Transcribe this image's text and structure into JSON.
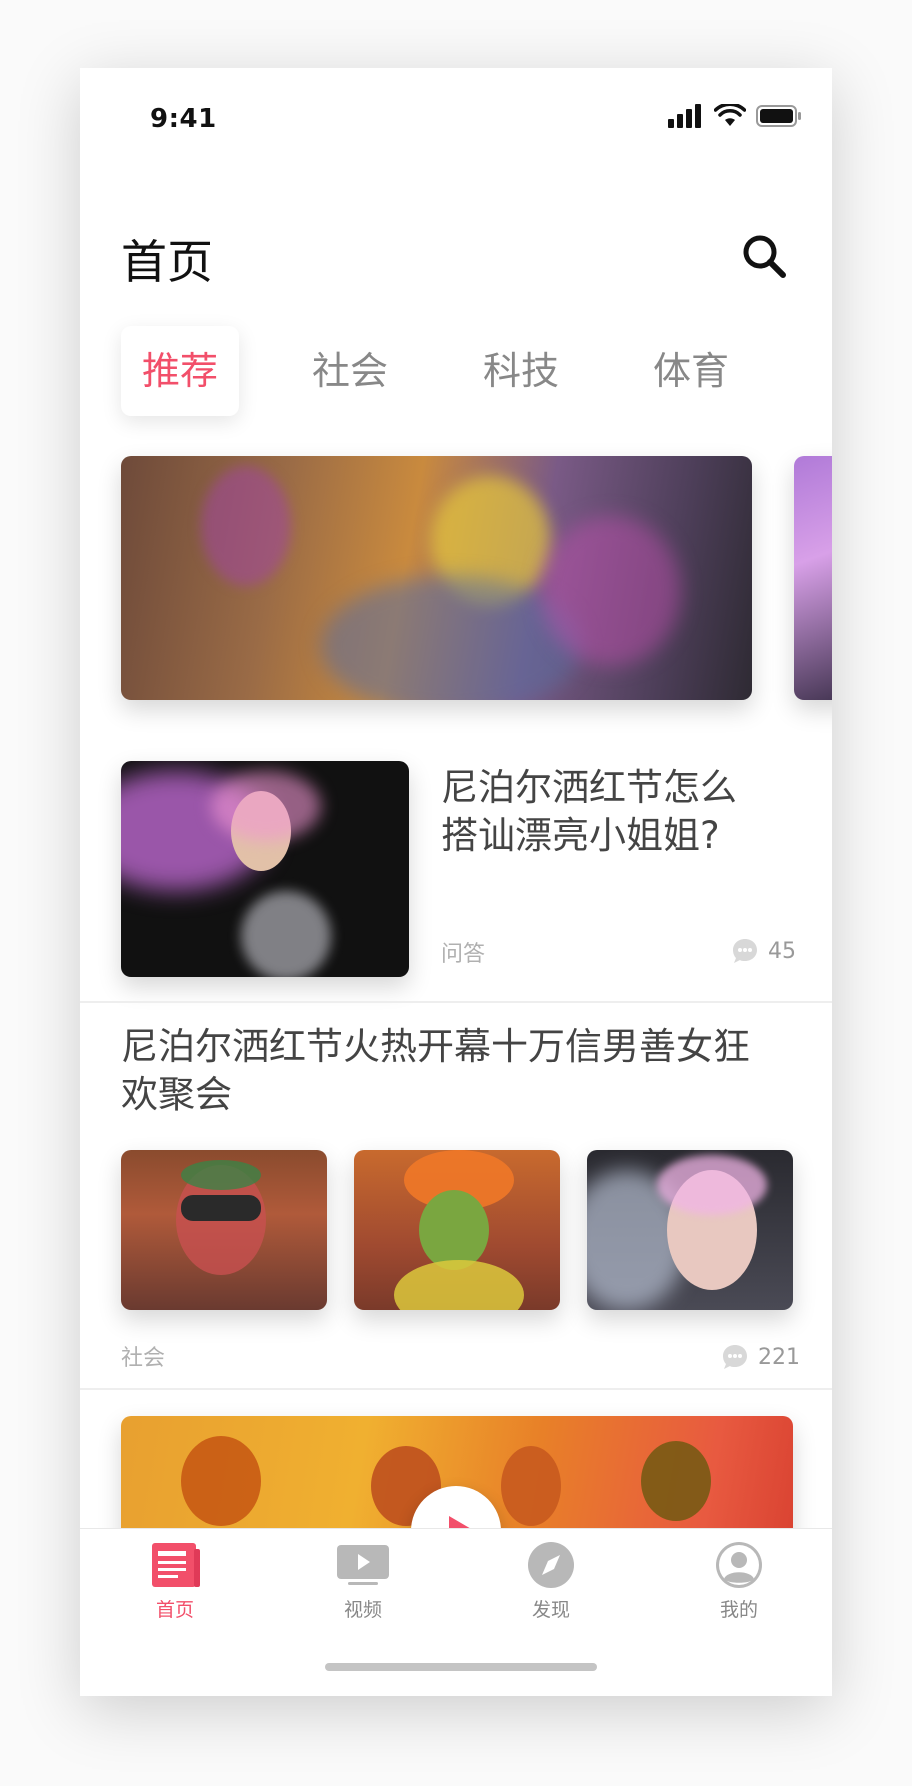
{
  "status": {
    "time": "9:41"
  },
  "header": {
    "title": "首页",
    "search_icon": "search-icon"
  },
  "tabs": [
    {
      "label": "推荐",
      "active": true
    },
    {
      "label": "社会",
      "active": false
    },
    {
      "label": "科技",
      "active": false
    },
    {
      "label": "体育",
      "active": false
    }
  ],
  "articles": [
    {
      "title": "尼泊尔洒红节怎么搭讪漂亮小姐姐?",
      "category": "问答",
      "comments": "45"
    },
    {
      "title": "尼泊尔洒红节火热开幕十万信男善女狂欢聚会",
      "category": "社会",
      "comments": "221"
    }
  ],
  "tabbar": [
    {
      "label": "首页",
      "icon": "news-icon",
      "active": true
    },
    {
      "label": "视频",
      "icon": "video-icon",
      "active": false
    },
    {
      "label": "发现",
      "icon": "compass-icon",
      "active": false
    },
    {
      "label": "我的",
      "icon": "profile-icon",
      "active": false
    }
  ],
  "colors": {
    "accent": "#f24f6a",
    "inactive": "#888888"
  }
}
